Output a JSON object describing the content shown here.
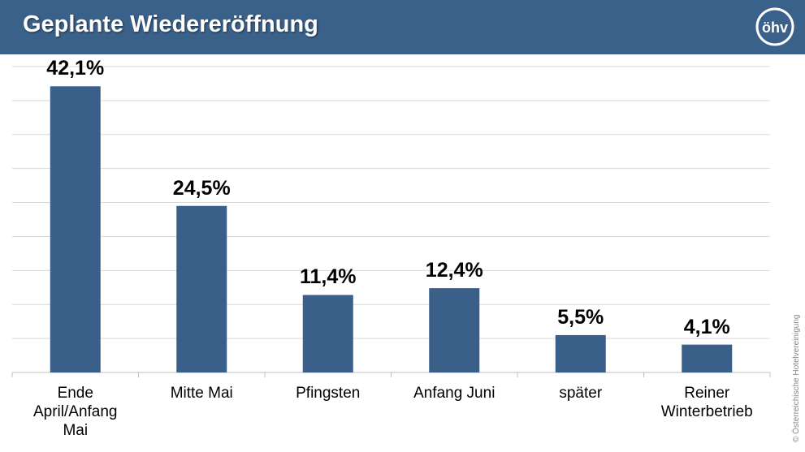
{
  "header": {
    "title": "Geplante Wiedereröffnung"
  },
  "chart_data": {
    "type": "bar",
    "categories": [
      "Ende April/Anfang Mai",
      "Mitte Mai",
      "Pfingsten",
      "Anfang Juni",
      "später",
      "Reiner Winterbetrieb"
    ],
    "values": [
      42.1,
      24.5,
      11.4,
      12.4,
      5.5,
      4.1
    ],
    "value_labels": [
      "42,1%",
      "24,5%",
      "11,4%",
      "12,4%",
      "5,5%",
      "4,1%"
    ],
    "color": "#3a5f89",
    "ylim": [
      0,
      45
    ],
    "yticks": [
      0,
      5,
      10,
      15,
      20,
      25,
      30,
      35,
      40,
      45
    ],
    "grid": true
  },
  "copyright": "© Österreichische Hotelvereinigung"
}
